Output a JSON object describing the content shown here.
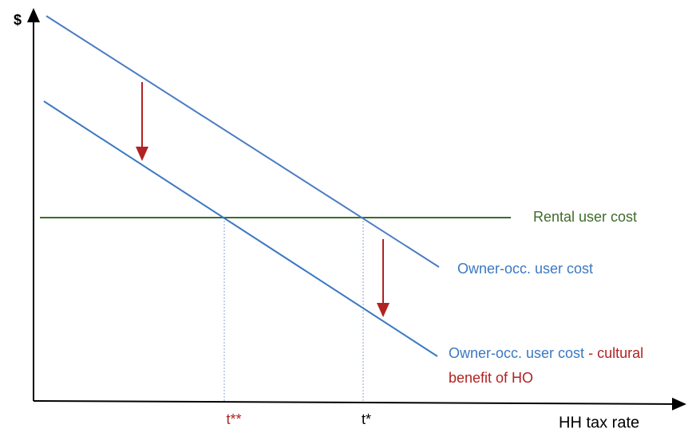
{
  "axes": {
    "y_label": "$",
    "x_label": "HH tax rate"
  },
  "lines": {
    "rental": "Rental user cost",
    "owner": "Owner-occ. user cost",
    "owner_cultural": [
      "Owner-occ. user cost",
      "- cultural",
      "benefit of HO"
    ]
  },
  "x_marks": {
    "t_double_star": "t**",
    "t_star": "t*"
  }
}
